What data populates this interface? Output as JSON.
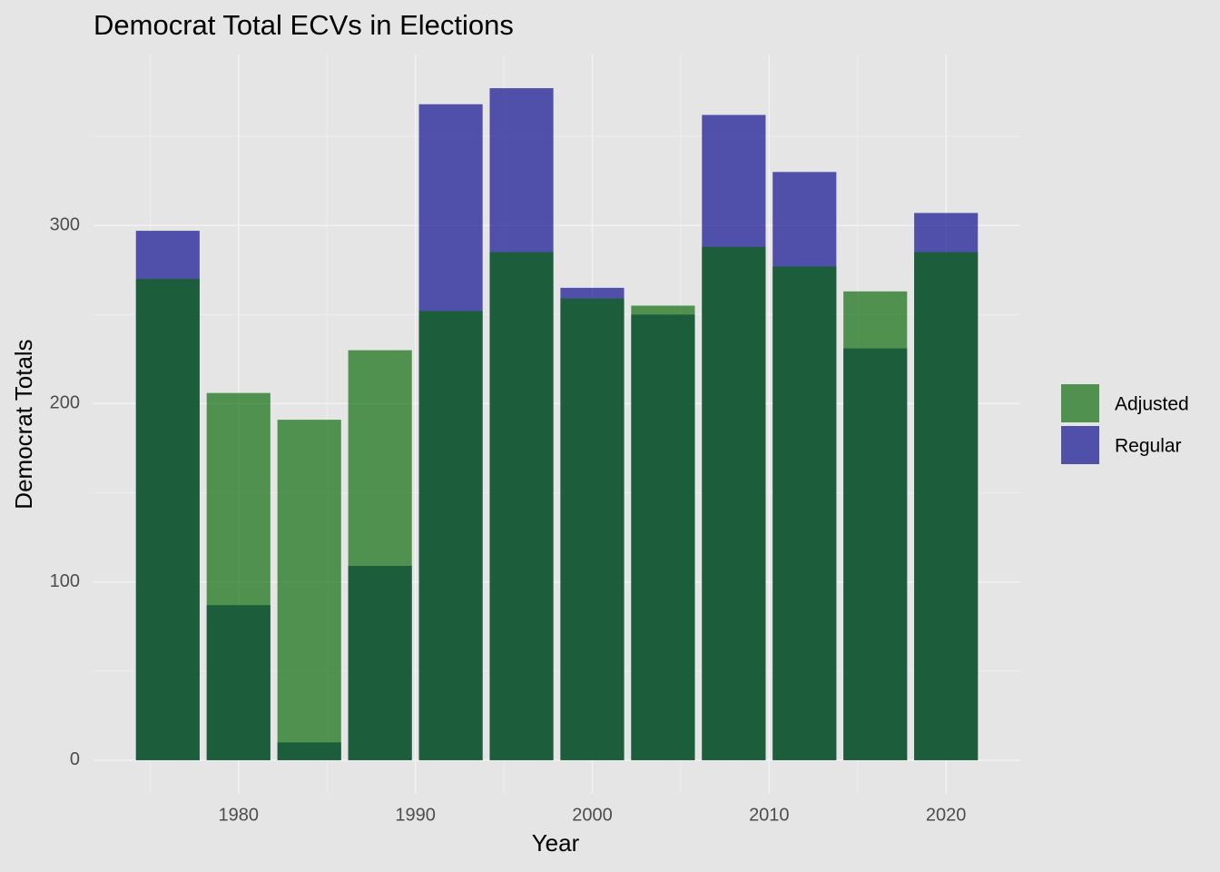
{
  "chart_data": {
    "type": "bar",
    "title": "Democrat Total ECVs in Elections",
    "x_label": "Year",
    "y_label": "Democrat Totals",
    "x": [
      1976,
      1980,
      1984,
      1988,
      1992,
      1996,
      2000,
      2004,
      2008,
      2012,
      2016,
      2020
    ],
    "series": [
      {
        "name": "Adjusted",
        "color": "#006400",
        "values": [
          270,
          206,
          191,
          230,
          252,
          285,
          259,
          255,
          288,
          277,
          263,
          285
        ]
      },
      {
        "name": "Regular",
        "color": "#00008b",
        "values": [
          297,
          87,
          10,
          109,
          368,
          377,
          265,
          250,
          362,
          330,
          231,
          307
        ]
      }
    ],
    "opacity": 0.65,
    "xlim": [
      1971.8,
      2024.2
    ],
    "xticks": [
      1980,
      1990,
      2000,
      2010,
      2020
    ],
    "minor_xticks": [
      1975,
      1985,
      1995,
      2005,
      2015
    ],
    "ylim": [
      -18.9,
      395.9
    ],
    "yticks": [
      0,
      100,
      200,
      300
    ],
    "minor_yticks": [
      50,
      150,
      250,
      350
    ],
    "grid": true,
    "legend": "right"
  }
}
